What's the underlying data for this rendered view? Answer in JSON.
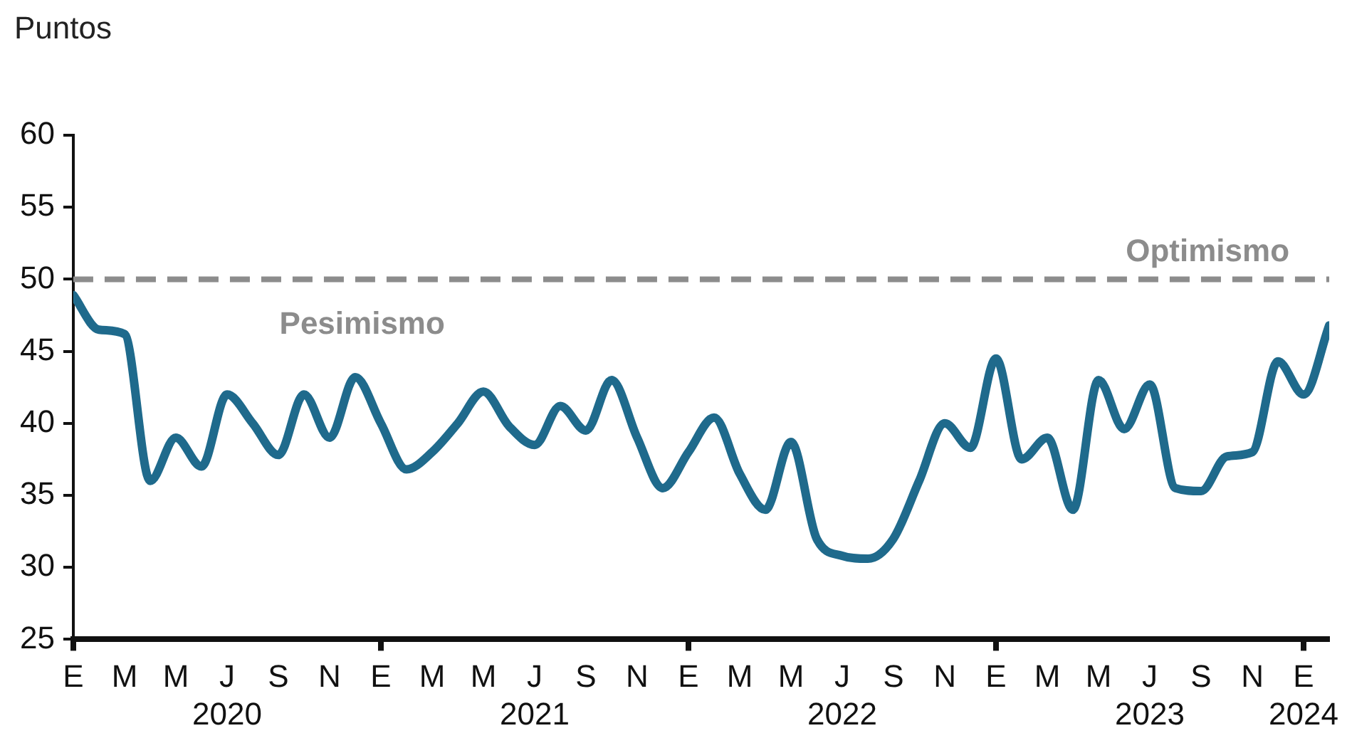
{
  "chart_data": {
    "type": "line",
    "ylabel": "Puntos",
    "x": [
      "2020-01",
      "2020-02",
      "2020-03",
      "2020-04",
      "2020-05",
      "2020-06",
      "2020-07",
      "2020-08",
      "2020-09",
      "2020-10",
      "2020-11",
      "2020-12",
      "2021-01",
      "2021-02",
      "2021-03",
      "2021-04",
      "2021-05",
      "2021-06",
      "2021-07",
      "2021-08",
      "2021-09",
      "2021-10",
      "2021-11",
      "2021-12",
      "2022-01",
      "2022-02",
      "2022-03",
      "2022-04",
      "2022-05",
      "2022-06",
      "2022-07",
      "2022-08",
      "2022-09",
      "2022-10",
      "2022-11",
      "2022-12",
      "2023-01",
      "2023-02",
      "2023-03",
      "2023-04",
      "2023-05",
      "2023-06",
      "2023-07",
      "2023-08",
      "2023-09",
      "2023-10",
      "2023-11",
      "2023-12",
      "2024-01",
      "2024-02"
    ],
    "series": [
      {
        "color": "#1f6a8c",
        "values": [
          48.9,
          46.5,
          46.2,
          36,
          39,
          37,
          42,
          40,
          37.8,
          42,
          39,
          43.2,
          40,
          36.8,
          38,
          40,
          42.2,
          39.8,
          38.5,
          41.2,
          39.5,
          43,
          39,
          35.5,
          38,
          40.4,
          36.5,
          34,
          38.7,
          32,
          30.8,
          30.6,
          32,
          36,
          40,
          38.3,
          44.5,
          37.5,
          39,
          34,
          43,
          39.6,
          42.7,
          35.5,
          35.3,
          37.7,
          38,
          44.3,
          42,
          46.8
        ]
      }
    ],
    "ylim": [
      25,
      60
    ],
    "yticks": [
      25,
      30,
      35,
      40,
      45,
      50,
      55,
      60
    ],
    "xlim": [
      "2020-01",
      "2024-02"
    ],
    "xticks": [
      {
        "value": "2020-01",
        "label": "E"
      },
      {
        "value": "2020-03",
        "label": "M"
      },
      {
        "value": "2020-05",
        "label": "M"
      },
      {
        "value": "2020-07",
        "label": "J\n2020"
      },
      {
        "value": "2020-09",
        "label": "S"
      },
      {
        "value": "2020-11",
        "label": "N"
      },
      {
        "value": "2021-01",
        "label": "E"
      },
      {
        "value": "2021-03",
        "label": "M"
      },
      {
        "value": "2021-05",
        "label": "M"
      },
      {
        "value": "2021-07",
        "label": "J\n2021"
      },
      {
        "value": "2021-09",
        "label": "S"
      },
      {
        "value": "2021-11",
        "label": "N"
      },
      {
        "value": "2022-01",
        "label": "E"
      },
      {
        "value": "2022-03",
        "label": "M"
      },
      {
        "value": "2022-05",
        "label": "M"
      },
      {
        "value": "2022-07",
        "label": "J\n2022"
      },
      {
        "value": "2022-09",
        "label": "S"
      },
      {
        "value": "2022-11",
        "label": "N"
      },
      {
        "value": "2023-01",
        "label": "E"
      },
      {
        "value": "2023-03",
        "label": "M"
      },
      {
        "value": "2023-05",
        "label": "M"
      },
      {
        "value": "2023-07",
        "label": "J\n2023"
      },
      {
        "value": "2023-09",
        "label": "S"
      },
      {
        "value": "2023-11",
        "label": "N"
      },
      {
        "value": "2024-01",
        "label": "E\n2024"
      }
    ],
    "ref_lines": [
      {
        "axis": "y",
        "value": 50,
        "label": "Optimismo",
        "color": "#8c8c8c",
        "line_style": "dashed"
      }
    ],
    "annotations": [
      "Pesimismo"
    ],
    "grid": false,
    "legend": false,
    "marker": "none",
    "line_style": "solid"
  }
}
